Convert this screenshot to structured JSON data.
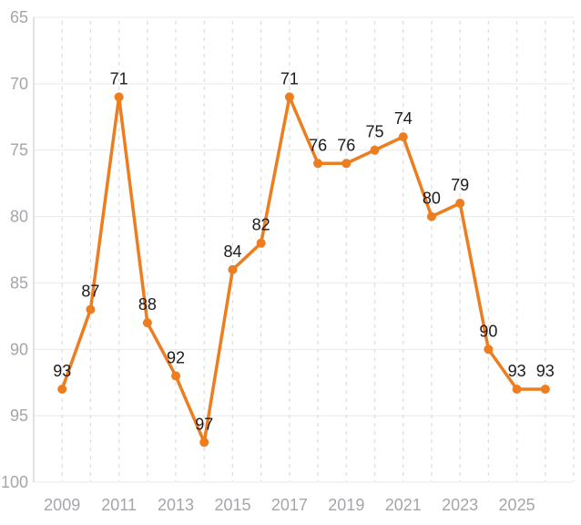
{
  "chart_data": {
    "type": "line",
    "title": "",
    "xlabel": "",
    "ylabel": "",
    "x": [
      2009,
      2010,
      2011,
      2012,
      2013,
      2014,
      2015,
      2016,
      2017,
      2018,
      2019,
      2020,
      2021,
      2022,
      2023,
      2024,
      2025,
      2026
    ],
    "series": [
      {
        "name": "value",
        "values": [
          93,
          87,
          71,
          88,
          92,
          97,
          84,
          82,
          71,
          76,
          76,
          75,
          74,
          80,
          79,
          90,
          93,
          93
        ]
      }
    ],
    "point_labels": [
      "93",
      "87",
      "71",
      "88",
      "92",
      "97",
      "84",
      "82",
      "71",
      "76",
      "76",
      "75",
      "74",
      "80",
      "79",
      "90",
      "93",
      "93"
    ],
    "ylim": [
      65,
      100
    ],
    "y_axis_inverted": true,
    "y_ticks": [
      65,
      70,
      75,
      80,
      85,
      90,
      95,
      100
    ],
    "x_tick_labels": [
      "2009",
      "2011",
      "2013",
      "2015",
      "2017",
      "2019",
      "2021",
      "2023",
      "2025"
    ],
    "x_tick_years": [
      2009,
      2011,
      2013,
      2015,
      2017,
      2019,
      2021,
      2023,
      2025
    ],
    "grid": {
      "horizontal": "solid",
      "vertical": "dashed",
      "vertical_every_year": true
    },
    "legend": "none",
    "colors": {
      "line": "#ED7D1F",
      "marker": "#ED7D1F",
      "point_label": "#1B1B1E",
      "tick_label": "#A5A5AC",
      "grid_horizontal": "#E9E9EC",
      "grid_vertical_dashed": "#E0E0E4",
      "axis_left_border": "#D4D4D9",
      "background": "#FFFFFF"
    }
  }
}
